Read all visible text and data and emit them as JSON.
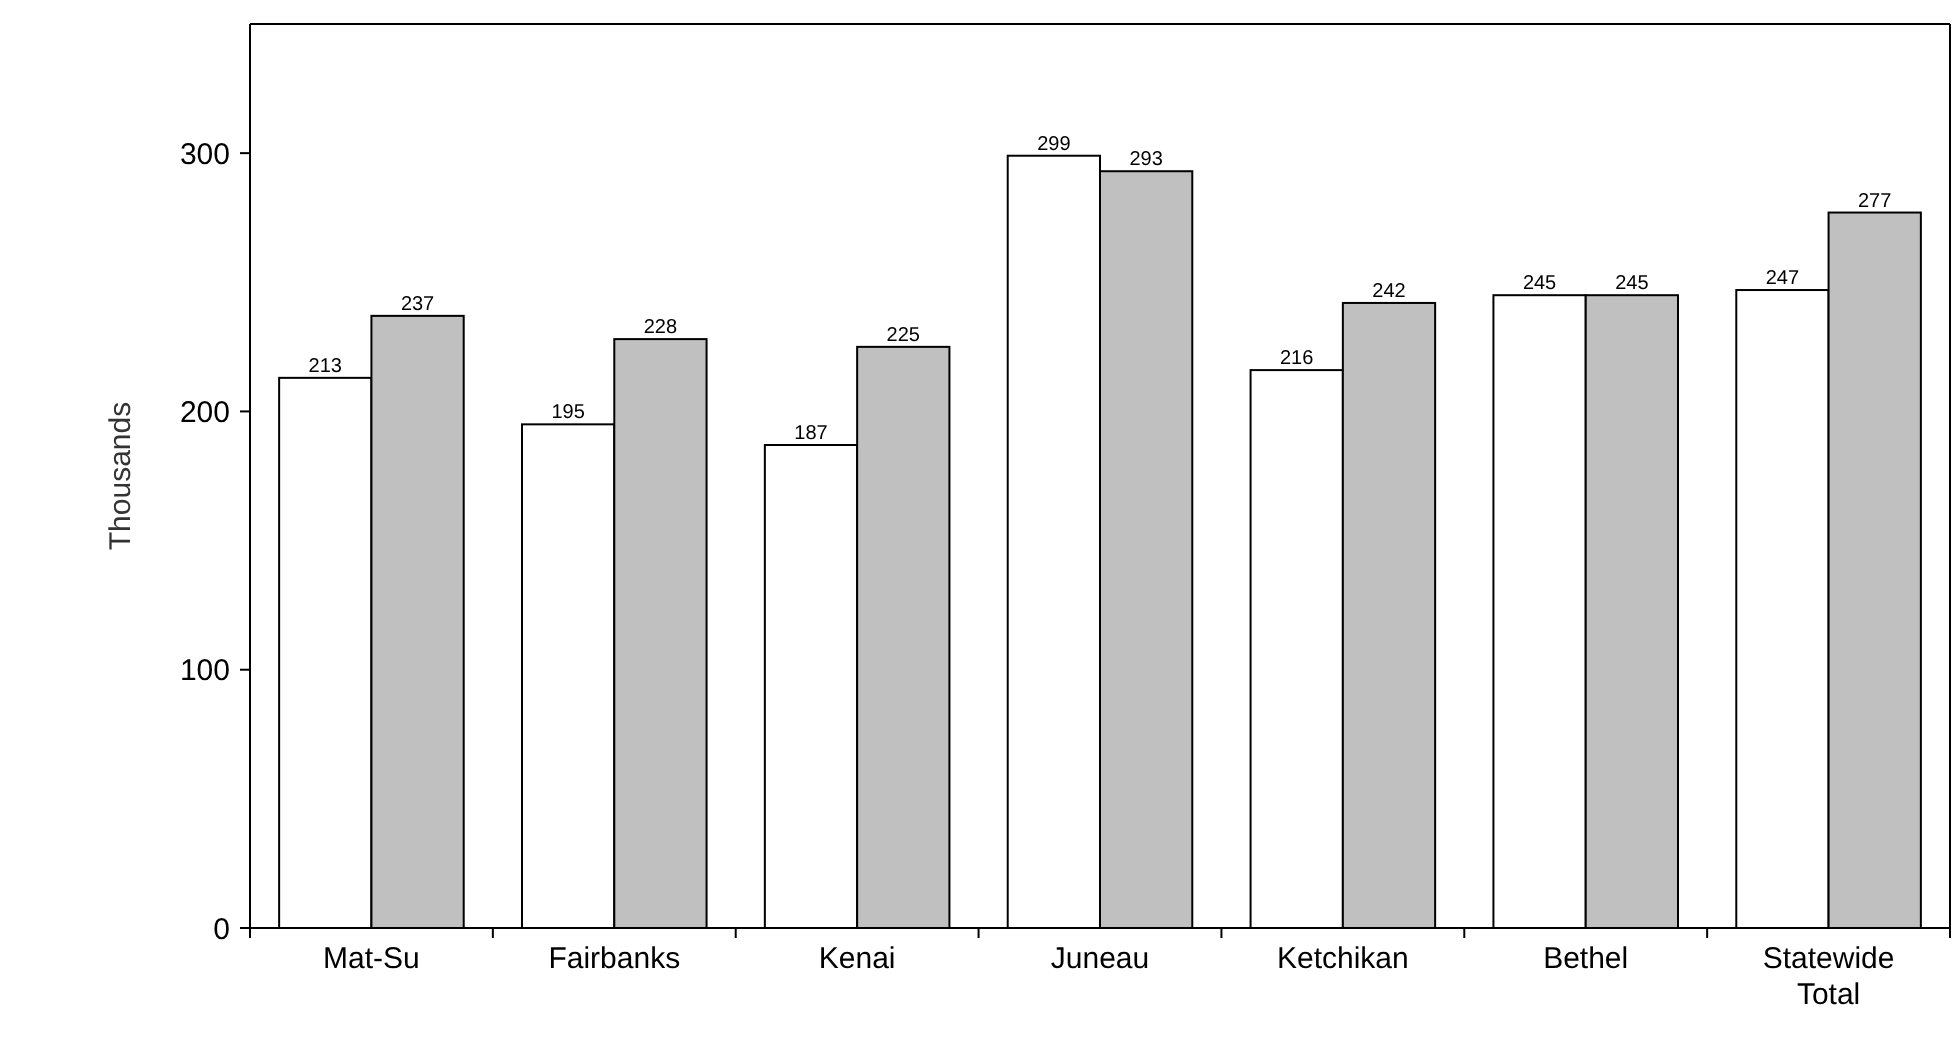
{
  "chart_data": {
    "type": "bar",
    "ylabel": "Thousands",
    "categories": [
      "Mat-Su",
      "Fairbanks",
      "Kenai",
      "Juneau",
      "Ketchikan",
      "Bethel",
      "Statewide Total"
    ],
    "series": [
      {
        "color": "#ffffff",
        "values": [
          213,
          195,
          187,
          299,
          216,
          245,
          247
        ]
      },
      {
        "color": "#c0c0c0",
        "values": [
          237,
          228,
          225,
          293,
          242,
          245,
          277
        ]
      }
    ],
    "ylim": [
      0,
      350
    ],
    "yticks": [
      0,
      100,
      200,
      300
    ],
    "data_labels": true
  }
}
